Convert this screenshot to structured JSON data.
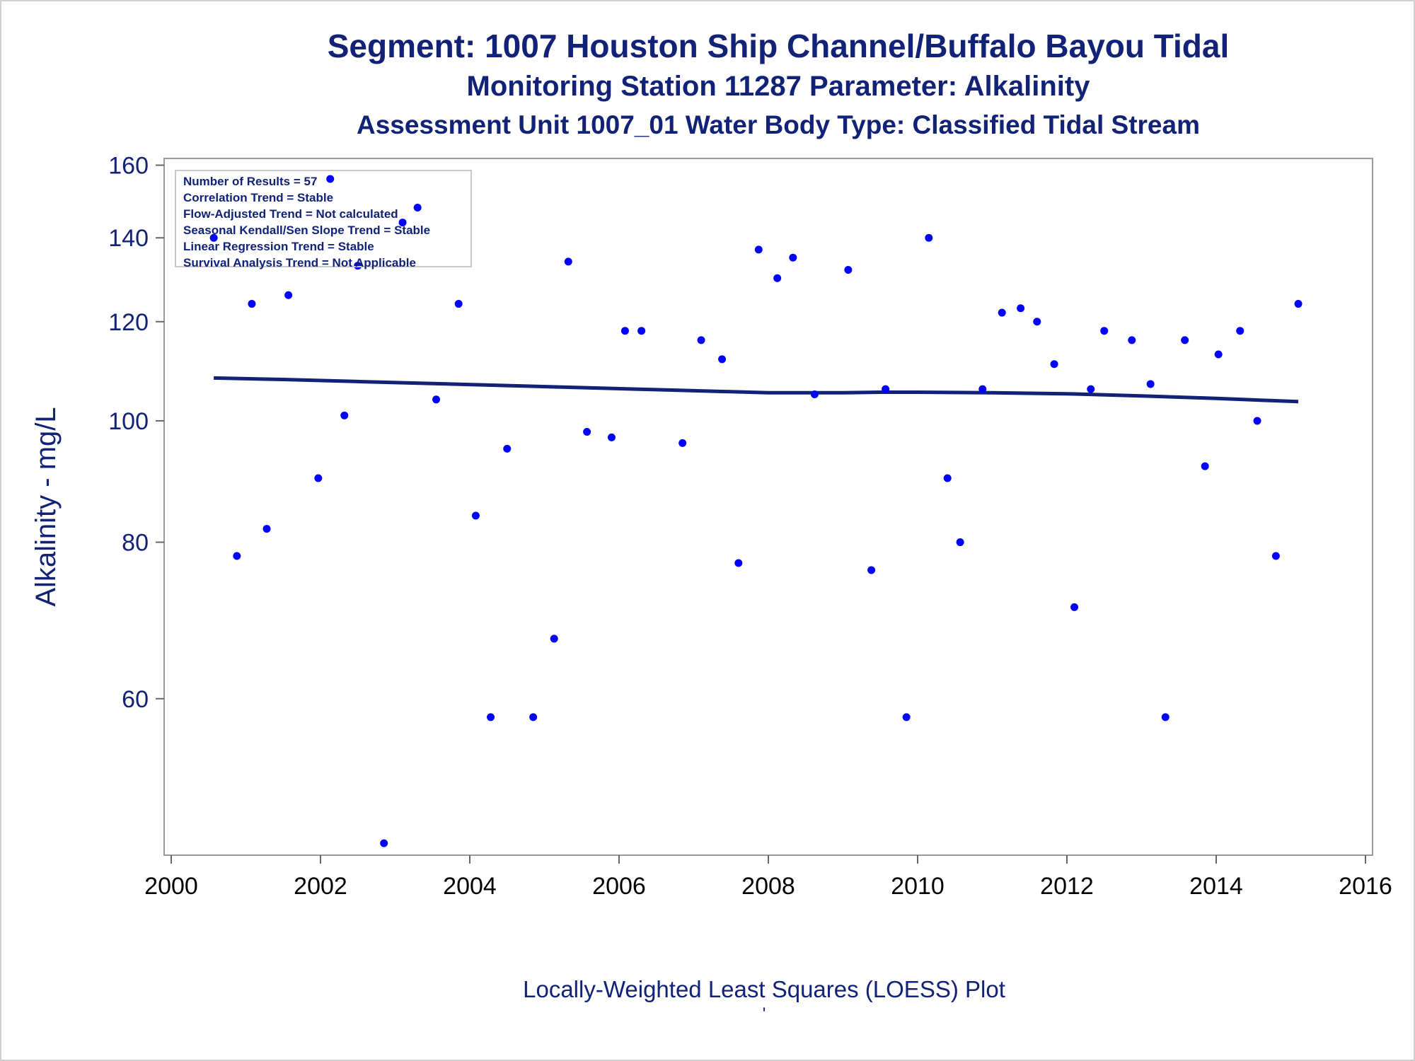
{
  "titles": {
    "line1": "Segment: 1007  Houston Ship Channel/Buffalo Bayou Tidal",
    "line2": "Monitoring Station 11287 Parameter: Alkalinity",
    "line3": "Assessment Unit 1007_01   Water Body Type: Classified Tidal Stream"
  },
  "footer": {
    "caption": "Locally-Weighted Least Squares (LOESS) Plot",
    "mark": "'"
  },
  "info": {
    "lines": [
      "Number of Results = 57",
      "Correlation Trend = Stable",
      "Flow-Adjusted Trend = Not calculated",
      "Seasonal Kendall/Sen Slope Trend = Stable",
      "Linear Regression Trend = Stable",
      "Survival Analysis Trend = Not Applicable"
    ]
  },
  "chart_data": {
    "type": "scatter",
    "ylabel": "Alkalinity - mg/L",
    "xlabel": "",
    "xlim": [
      2000,
      2016
    ],
    "x_ticks": [
      2000,
      2002,
      2004,
      2006,
      2008,
      2010,
      2012,
      2014,
      2016
    ],
    "y_ticks": [
      60,
      80,
      100,
      120,
      140,
      160
    ],
    "y_scale": "log",
    "ylim": [
      45,
      162
    ],
    "point_color": "#0000ff",
    "line_color": "#112277",
    "points": [
      {
        "x": 2000.57,
        "y": 140
      },
      {
        "x": 2000.88,
        "y": 78
      },
      {
        "x": 2001.08,
        "y": 124
      },
      {
        "x": 2001.28,
        "y": 82
      },
      {
        "x": 2001.57,
        "y": 126
      },
      {
        "x": 2001.97,
        "y": 90
      },
      {
        "x": 2002.13,
        "y": 156
      },
      {
        "x": 2002.32,
        "y": 101
      },
      {
        "x": 2002.5,
        "y": 133
      },
      {
        "x": 2002.85,
        "y": 46
      },
      {
        "x": 2003.1,
        "y": 144
      },
      {
        "x": 2003.3,
        "y": 148
      },
      {
        "x": 2003.55,
        "y": 104
      },
      {
        "x": 2003.85,
        "y": 124
      },
      {
        "x": 2004.08,
        "y": 84
      },
      {
        "x": 2004.28,
        "y": 58
      },
      {
        "x": 2004.5,
        "y": 95
      },
      {
        "x": 2004.85,
        "y": 58
      },
      {
        "x": 2005.13,
        "y": 67
      },
      {
        "x": 2005.32,
        "y": 134
      },
      {
        "x": 2005.57,
        "y": 98
      },
      {
        "x": 2005.9,
        "y": 97
      },
      {
        "x": 2006.08,
        "y": 118
      },
      {
        "x": 2006.3,
        "y": 118
      },
      {
        "x": 2006.85,
        "y": 96
      },
      {
        "x": 2007.1,
        "y": 116
      },
      {
        "x": 2007.38,
        "y": 112
      },
      {
        "x": 2007.6,
        "y": 77
      },
      {
        "x": 2007.87,
        "y": 137
      },
      {
        "x": 2008.12,
        "y": 130
      },
      {
        "x": 2008.33,
        "y": 135
      },
      {
        "x": 2008.62,
        "y": 105
      },
      {
        "x": 2009.07,
        "y": 132
      },
      {
        "x": 2009.38,
        "y": 76
      },
      {
        "x": 2009.57,
        "y": 106
      },
      {
        "x": 2009.85,
        "y": 58
      },
      {
        "x": 2010.15,
        "y": 140
      },
      {
        "x": 2010.4,
        "y": 90
      },
      {
        "x": 2010.57,
        "y": 80
      },
      {
        "x": 2010.87,
        "y": 106
      },
      {
        "x": 2011.13,
        "y": 122
      },
      {
        "x": 2011.38,
        "y": 123
      },
      {
        "x": 2011.6,
        "y": 120
      },
      {
        "x": 2011.83,
        "y": 111
      },
      {
        "x": 2012.1,
        "y": 71
      },
      {
        "x": 2012.32,
        "y": 106
      },
      {
        "x": 2012.5,
        "y": 118
      },
      {
        "x": 2012.87,
        "y": 116
      },
      {
        "x": 2013.12,
        "y": 107
      },
      {
        "x": 2013.32,
        "y": 58
      },
      {
        "x": 2013.58,
        "y": 116
      },
      {
        "x": 2013.85,
        "y": 92
      },
      {
        "x": 2014.03,
        "y": 113
      },
      {
        "x": 2014.32,
        "y": 118
      },
      {
        "x": 2014.55,
        "y": 100
      },
      {
        "x": 2014.8,
        "y": 78
      },
      {
        "x": 2015.1,
        "y": 124
      }
    ],
    "loess": {
      "x": [
        2000.57,
        2001.5,
        2002.5,
        2003.5,
        2004.5,
        2005.5,
        2006.5,
        2007.5,
        2008.0,
        2009.0,
        2009.5,
        2010.0,
        2011.0,
        2012.0,
        2013.0,
        2014.0,
        2015.1
      ],
      "y": [
        108.2,
        107.9,
        107.5,
        107.1,
        106.7,
        106.3,
        105.9,
        105.5,
        105.3,
        105.3,
        105.4,
        105.4,
        105.3,
        105.1,
        104.7,
        104.2,
        103.6
      ]
    }
  }
}
